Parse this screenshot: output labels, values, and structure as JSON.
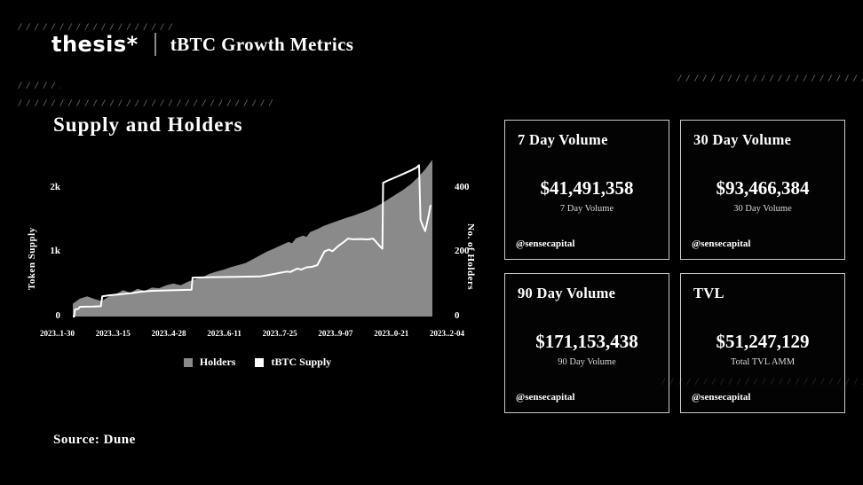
{
  "header": {
    "logo": "thesis*",
    "title": "tBTC Growth Metrics"
  },
  "chart_section": {
    "title": "Supply and Holders"
  },
  "chart_data": {
    "type": "area",
    "title": "Supply and Holders",
    "left_axis": {
      "label": "Token Supply",
      "ticks": [
        "0",
        "1k",
        "2k"
      ],
      "range": [
        0,
        2600
      ]
    },
    "right_axis": {
      "label": "No. of Holders",
      "ticks": [
        "0",
        "200",
        "400"
      ],
      "range": [
        0,
        520
      ]
    },
    "x_labels": [
      "2023..1-30",
      "2023..3-15",
      "2023..4-28",
      "2023..6-11",
      "2023..7-25",
      "2023..9-07",
      "2023..0-21",
      "2023..2-04"
    ],
    "grid": false,
    "legend_position": "bottom",
    "legend": [
      {
        "label": "Holders",
        "color": "#8a8a8a"
      },
      {
        "label": "tBTC Supply",
        "color": "#ffffff"
      }
    ],
    "series": [
      {
        "name": "Holders",
        "type": "area",
        "axis": "right",
        "color": "#8a8a8a",
        "points": [
          [
            0,
            40
          ],
          [
            0.02,
            56
          ],
          [
            0.04,
            63
          ],
          [
            0.06,
            55
          ],
          [
            0.08,
            48
          ],
          [
            0.1,
            62
          ],
          [
            0.12,
            70
          ],
          [
            0.14,
            82
          ],
          [
            0.16,
            74
          ],
          [
            0.18,
            86
          ],
          [
            0.2,
            80
          ],
          [
            0.22,
            90
          ],
          [
            0.24,
            88
          ],
          [
            0.26,
            97
          ],
          [
            0.28,
            103
          ],
          [
            0.3,
            97
          ],
          [
            0.32,
            108
          ],
          [
            0.34,
            116
          ],
          [
            0.36,
            121
          ],
          [
            0.38,
            133
          ],
          [
            0.4,
            140
          ],
          [
            0.42,
            146
          ],
          [
            0.44,
            154
          ],
          [
            0.46,
            160
          ],
          [
            0.48,
            166
          ],
          [
            0.5,
            178
          ],
          [
            0.52,
            190
          ],
          [
            0.54,
            202
          ],
          [
            0.56,
            212
          ],
          [
            0.58,
            222
          ],
          [
            0.6,
            232
          ],
          [
            0.61,
            228
          ],
          [
            0.62,
            243
          ],
          [
            0.64,
            252
          ],
          [
            0.65,
            248
          ],
          [
            0.66,
            263
          ],
          [
            0.68,
            272
          ],
          [
            0.7,
            283
          ],
          [
            0.72,
            291
          ],
          [
            0.74,
            299
          ],
          [
            0.76,
            307
          ],
          [
            0.78,
            314
          ],
          [
            0.8,
            322
          ],
          [
            0.82,
            330
          ],
          [
            0.84,
            340
          ],
          [
            0.86,
            352
          ],
          [
            0.88,
            367
          ],
          [
            0.9,
            381
          ],
          [
            0.92,
            395
          ],
          [
            0.94,
            412
          ],
          [
            0.96,
            433
          ],
          [
            0.98,
            458
          ],
          [
            1,
            488
          ]
        ]
      },
      {
        "name": "tBTC Supply",
        "type": "line",
        "axis": "left",
        "color": "#ffffff",
        "points": [
          [
            0,
            0
          ],
          [
            0.004,
            0
          ],
          [
            0.006,
            110
          ],
          [
            0.015,
            118
          ],
          [
            0.02,
            152
          ],
          [
            0.055,
            154
          ],
          [
            0.078,
            160
          ],
          [
            0.082,
            315
          ],
          [
            0.1,
            330
          ],
          [
            0.13,
            345
          ],
          [
            0.15,
            357
          ],
          [
            0.17,
            370
          ],
          [
            0.19,
            386
          ],
          [
            0.22,
            400
          ],
          [
            0.25,
            406
          ],
          [
            0.3,
            412
          ],
          [
            0.33,
            416
          ],
          [
            0.333,
            605
          ],
          [
            0.38,
            612
          ],
          [
            0.45,
            618
          ],
          [
            0.52,
            624
          ],
          [
            0.54,
            642
          ],
          [
            0.56,
            662
          ],
          [
            0.58,
            684
          ],
          [
            0.595,
            700
          ],
          [
            0.605,
            692
          ],
          [
            0.615,
            722
          ],
          [
            0.625,
            746
          ],
          [
            0.635,
            730
          ],
          [
            0.65,
            766
          ],
          [
            0.665,
            772
          ],
          [
            0.68,
            800
          ],
          [
            0.69,
            905
          ],
          [
            0.7,
            1012
          ],
          [
            0.712,
            1042
          ],
          [
            0.722,
            1015
          ],
          [
            0.74,
            1105
          ],
          [
            0.755,
            1165
          ],
          [
            0.765,
            1212
          ],
          [
            0.78,
            1202
          ],
          [
            0.8,
            1206
          ],
          [
            0.82,
            1200
          ],
          [
            0.835,
            1212
          ],
          [
            0.845,
            1152
          ],
          [
            0.853,
            1100
          ],
          [
            0.861,
            1055
          ],
          [
            0.863,
            2080
          ],
          [
            0.88,
            2125
          ],
          [
            0.9,
            2172
          ],
          [
            0.92,
            2222
          ],
          [
            0.94,
            2272
          ],
          [
            0.955,
            2315
          ],
          [
            0.963,
            2355
          ],
          [
            0.967,
            1505
          ],
          [
            0.974,
            1400
          ],
          [
            0.98,
            1330
          ],
          [
            0.988,
            1525
          ],
          [
            0.995,
            1735
          ]
        ]
      }
    ]
  },
  "cards": [
    {
      "title": "7 Day Volume",
      "value": "$41,491,358",
      "sublabel": "7 Day Volume",
      "handle": "@sensecapital"
    },
    {
      "title": "30 Day Volume",
      "value": "$93,466,384",
      "sublabel": "30 Day Volume",
      "handle": "@sensecapital"
    },
    {
      "title": "90 Day Volume",
      "value": "$171,153,438",
      "sublabel": "90 Day Volume",
      "handle": "@sensecapital"
    },
    {
      "title": "TVL",
      "value": "$51,247,129",
      "sublabel": "Total TVL AMM",
      "handle": "@sensecapital"
    }
  ],
  "footer": {
    "source": "Source: Dune"
  }
}
